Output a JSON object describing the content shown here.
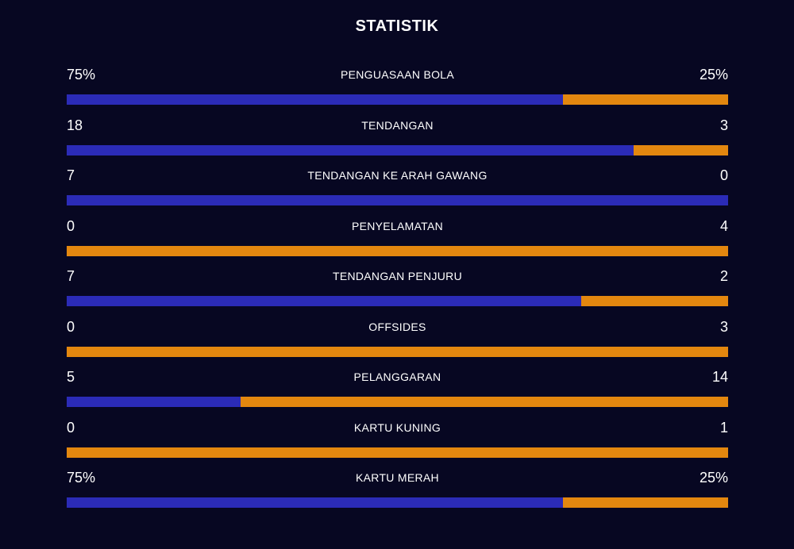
{
  "title": "STATISTIK",
  "colors": {
    "background": "#070722",
    "home": "#2b2bb7",
    "away": "#e3870f"
  },
  "stats": [
    {
      "label": "PENGUASAAN BOLA",
      "home": "75%",
      "away": "25%",
      "home_share": 0.75
    },
    {
      "label": "TENDANGAN",
      "home": "18",
      "away": "3",
      "home_share": 0.857
    },
    {
      "label": "TENDANGAN KE ARAH GAWANG",
      "home": "7",
      "away": "0",
      "home_share": 1.0
    },
    {
      "label": "PENYELAMATAN",
      "home": "0",
      "away": "4",
      "home_share": 0.0
    },
    {
      "label": "TENDANGAN PENJURU",
      "home": "7",
      "away": "2",
      "home_share": 0.778
    },
    {
      "label": "OFFSIDES",
      "home": "0",
      "away": "3",
      "home_share": 0.0
    },
    {
      "label": "PELANGGARAN",
      "home": "5",
      "away": "14",
      "home_share": 0.263
    },
    {
      "label": "KARTU KUNING",
      "home": "0",
      "away": "1",
      "home_share": 0.0
    },
    {
      "label": "KARTU MERAH",
      "home": "75%",
      "away": "25%",
      "home_share": 0.75
    }
  ]
}
